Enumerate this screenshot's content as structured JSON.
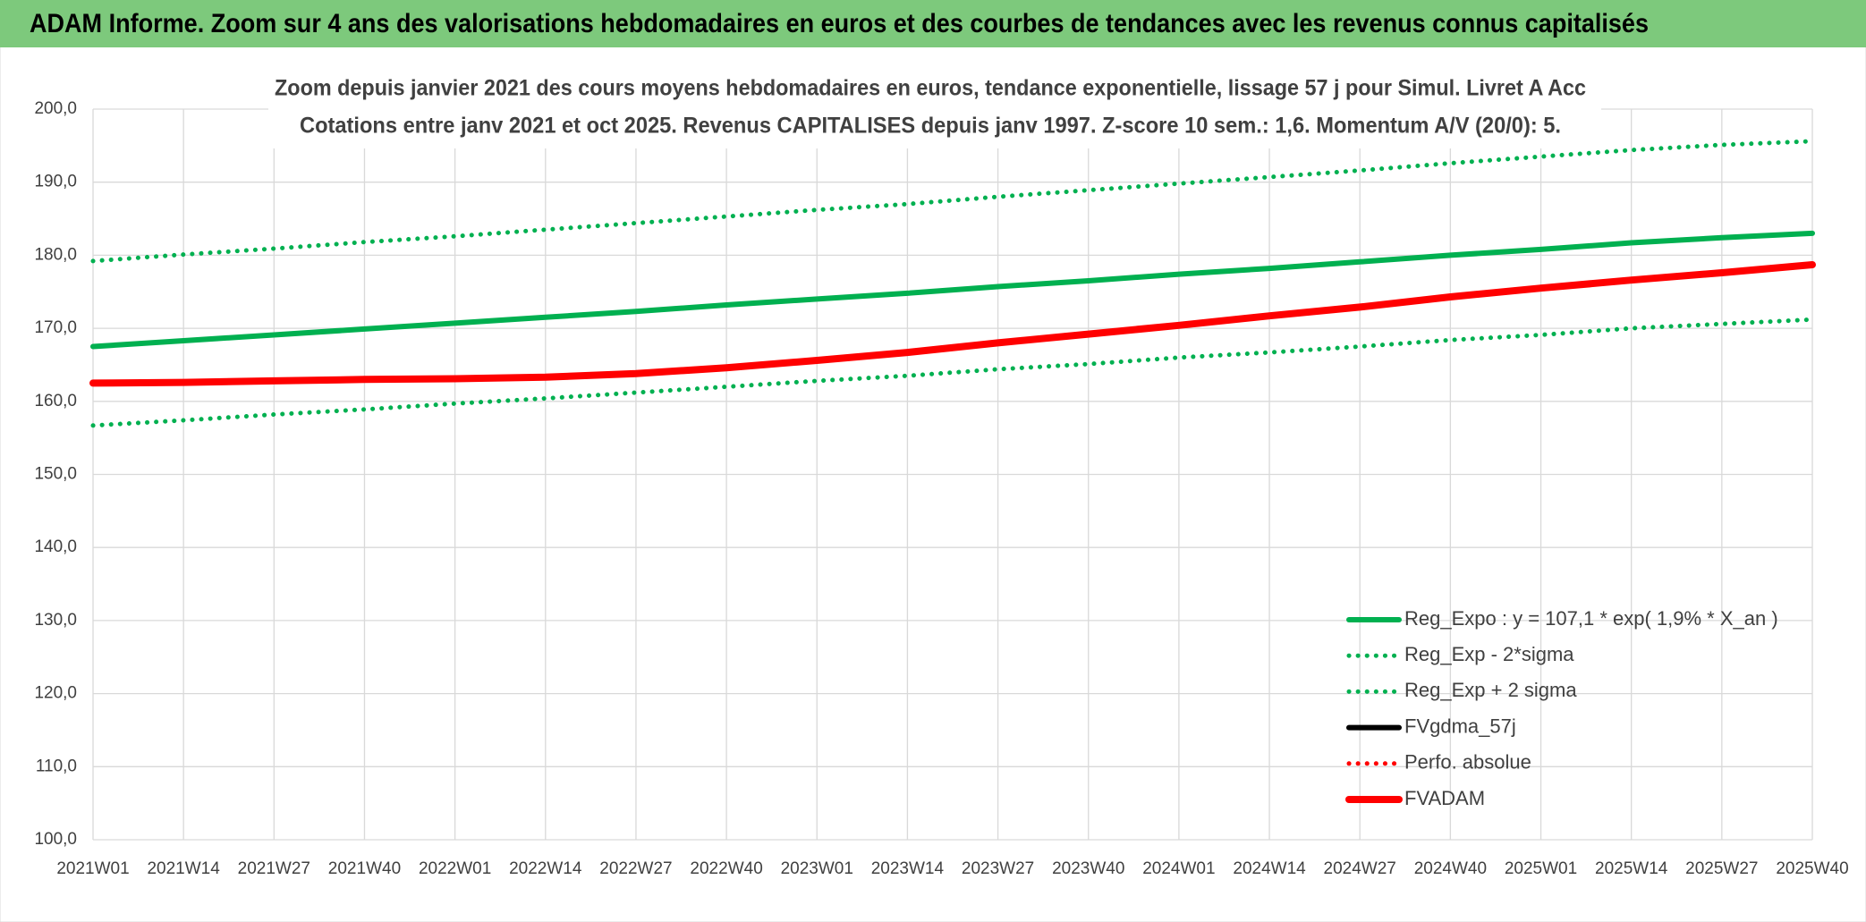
{
  "header": {
    "title": "ADAM Informe. Zoom sur 4 ans des valorisations hebdomadaires en euros et des courbes de tendances avec les revenus connus capitalisés"
  },
  "chart_data": {
    "type": "line",
    "title": "Zoom depuis janvier 2021 des cours moyens hebdomadaires en euros, tendance exponentielle, lissage 57 j pour Simul. Livret A Acc",
    "subtitle": "Cotations entre janv 2021 et oct 2025. Revenus CAPITALISES depuis janv 1997. Z-score 10 sem.: 1,6. Momentum A/V (20/0): 5.",
    "categories": [
      "2021W01",
      "2021W14",
      "2021W27",
      "2021W40",
      "2022W01",
      "2022W14",
      "2022W27",
      "2022W40",
      "2023W01",
      "2023W14",
      "2023W27",
      "2023W40",
      "2024W01",
      "2024W14",
      "2024W27",
      "2024W40",
      "2025W01",
      "2025W14",
      "2025W27",
      "2025W40"
    ],
    "ylim": [
      100,
      200
    ],
    "yticks": [
      {
        "value": 100,
        "label": "100,0"
      },
      {
        "value": 110,
        "label": "110,0"
      },
      {
        "value": 120,
        "label": "120,0"
      },
      {
        "value": 130,
        "label": "130,0"
      },
      {
        "value": 140,
        "label": "140,0"
      },
      {
        "value": 150,
        "label": "150,0"
      },
      {
        "value": 160,
        "label": "160,0"
      },
      {
        "value": 170,
        "label": "170,0"
      },
      {
        "value": 180,
        "label": "180,0"
      },
      {
        "value": 190,
        "label": "190,0"
      },
      {
        "value": 200,
        "label": "200,0"
      }
    ],
    "grid": true,
    "legend": "lower right",
    "series": [
      {
        "name": "Reg_Expo : y = 107,1 * exp( 1,9% *  X_an )",
        "color": "#00b050",
        "line_style": "solid",
        "values": [
          167.5,
          168.3,
          169.1,
          169.9,
          170.7,
          171.5,
          172.3,
          173.2,
          174.0,
          174.8,
          175.7,
          176.5,
          177.4,
          178.2,
          179.1,
          180.0,
          180.8,
          181.7,
          182.4,
          183.0
        ]
      },
      {
        "name": "Reg_Exp - 2*sigma",
        "color": "#00b050",
        "line_style": "dotted",
        "values": [
          156.7,
          157.4,
          158.2,
          158.9,
          159.7,
          160.4,
          161.2,
          162.0,
          162.8,
          163.5,
          164.4,
          165.1,
          166.0,
          166.7,
          167.5,
          168.4,
          169.1,
          170.0,
          170.6,
          171.2
        ]
      },
      {
        "name": "Reg_Exp + 2 sigma",
        "color": "#00b050",
        "line_style": "dotted",
        "values": [
          179.2,
          180.1,
          180.9,
          181.8,
          182.6,
          183.5,
          184.4,
          185.3,
          186.2,
          187.0,
          188.0,
          188.9,
          189.8,
          190.7,
          191.6,
          192.6,
          193.5,
          194.4,
          195.1,
          195.6
        ]
      },
      {
        "name": "FVgdma_57j",
        "color": "#000000",
        "line_style": "solid",
        "values": [
          null,
          null,
          null,
          null,
          null,
          null,
          null,
          null,
          null,
          null,
          null,
          null,
          null,
          null,
          null,
          null,
          null,
          null,
          null,
          null
        ]
      },
      {
        "name": "Perfo. absolue",
        "color": "#ff0000",
        "line_style": "dotted",
        "values": [
          null,
          null,
          null,
          null,
          null,
          null,
          null,
          null,
          null,
          null,
          null,
          null,
          null,
          null,
          null,
          null,
          null,
          null,
          null,
          null
        ]
      },
      {
        "name": "FVADAM",
        "color": "#ff0000",
        "line_style": "solid",
        "values": [
          162.5,
          162.6,
          162.8,
          163.0,
          163.1,
          163.3,
          163.8,
          164.6,
          165.6,
          166.7,
          168.0,
          169.2,
          170.4,
          171.7,
          172.9,
          174.3,
          175.5,
          176.6,
          177.6,
          178.7
        ]
      }
    ]
  }
}
